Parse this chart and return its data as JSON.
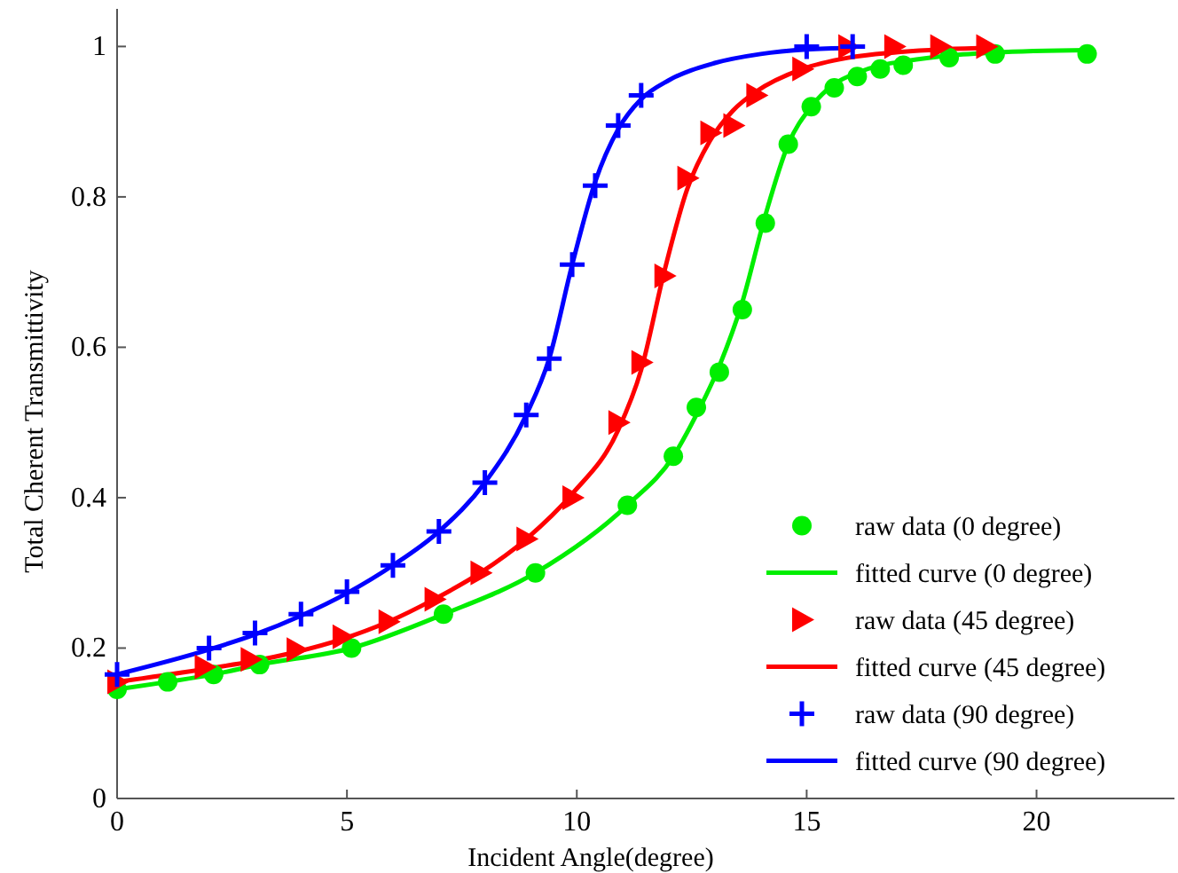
{
  "chart_data": {
    "type": "line",
    "xlabel": "Incident Angle(degree)",
    "ylabel": "Total Cherent Transmittivity",
    "xlim": [
      0,
      23
    ],
    "ylim": [
      0,
      1.05
    ],
    "xticks": [
      0,
      5,
      10,
      15,
      20
    ],
    "yticks": [
      0,
      0.2,
      0.4,
      0.6,
      0.8,
      1
    ],
    "grid": false,
    "legend": "bottom right",
    "series": [
      {
        "name": "raw data (0 degree)",
        "type": "scatter",
        "marker": "circle",
        "color": "#00ee00",
        "x": [
          0,
          1.1,
          2.1,
          3.1,
          5.1,
          7.1,
          9.1,
          11.1,
          12.1,
          12.6,
          13.1,
          13.6,
          14.1,
          14.6,
          15.1,
          15.6,
          16.1,
          16.6,
          17.1,
          18.1,
          19.1,
          21.1
        ],
        "values": [
          0.145,
          0.155,
          0.165,
          0.178,
          0.2,
          0.245,
          0.3,
          0.39,
          0.455,
          0.52,
          0.567,
          0.65,
          0.765,
          0.87,
          0.92,
          0.945,
          0.96,
          0.97,
          0.975,
          0.985,
          0.99,
          0.99
        ]
      },
      {
        "name": "fitted curve (0 degree)",
        "marker": "none",
        "color": "#00ee00",
        "x": [
          0,
          1.1,
          2.1,
          3.1,
          5.1,
          7.1,
          9.1,
          11.1,
          12.1,
          12.6,
          13.1,
          13.6,
          14.1,
          14.6,
          15.1,
          15.6,
          16.1,
          16.6,
          17.1,
          18.1,
          19.1,
          21.1
        ],
        "values": [
          0.145,
          0.155,
          0.165,
          0.178,
          0.2,
          0.245,
          0.3,
          0.39,
          0.455,
          0.51,
          0.575,
          0.66,
          0.775,
          0.87,
          0.92,
          0.95,
          0.965,
          0.975,
          0.98,
          0.988,
          0.992,
          0.995
        ]
      },
      {
        "name": "raw data (45 degree)",
        "type": "scatter",
        "marker": "triangle",
        "color": "#ff0000",
        "x": [
          0,
          1.9,
          2.9,
          3.9,
          4.9,
          5.9,
          6.9,
          7.9,
          8.9,
          9.9,
          10.9,
          11.4,
          11.9,
          12.4,
          12.9,
          13.4,
          13.9,
          14.9,
          15.9,
          16.9,
          17.9,
          18.9
        ],
        "values": [
          0.155,
          0.175,
          0.185,
          0.198,
          0.215,
          0.235,
          0.265,
          0.3,
          0.345,
          0.4,
          0.5,
          0.58,
          0.695,
          0.825,
          0.885,
          0.895,
          0.935,
          0.97,
          1.0,
          1.0,
          1.0,
          1.0
        ]
      },
      {
        "name": "fitted curve (45 degree)",
        "marker": "none",
        "color": "#ff0000",
        "x": [
          0,
          1.9,
          2.9,
          3.9,
          4.9,
          5.9,
          6.9,
          7.9,
          8.9,
          9.9,
          10.9,
          11.4,
          11.9,
          12.4,
          12.9,
          13.4,
          13.9,
          14.9,
          15.9,
          16.9,
          17.9,
          18.9
        ],
        "values": [
          0.155,
          0.172,
          0.182,
          0.195,
          0.212,
          0.235,
          0.265,
          0.3,
          0.345,
          0.405,
          0.49,
          0.57,
          0.7,
          0.81,
          0.875,
          0.915,
          0.94,
          0.97,
          0.985,
          0.992,
          0.996,
          0.998
        ]
      },
      {
        "name": "raw data (90 degree)",
        "type": "scatter",
        "marker": "cross",
        "color": "#0000ff",
        "x": [
          0,
          2,
          3,
          4,
          5,
          6,
          7,
          8,
          8.9,
          9.4,
          9.9,
          10.4,
          10.9,
          11.4,
          15,
          16
        ],
        "values": [
          0.165,
          0.2,
          0.22,
          0.245,
          0.275,
          0.31,
          0.355,
          0.42,
          0.51,
          0.585,
          0.71,
          0.815,
          0.895,
          0.935,
          1.0,
          1.0
        ]
      },
      {
        "name": "fitted curve (90 degree)",
        "marker": "none",
        "color": "#0000ff",
        "x": [
          0,
          2,
          3,
          4,
          5,
          6,
          7,
          8,
          8.9,
          9.4,
          9.9,
          10.4,
          10.9,
          11.4,
          12,
          13,
          14,
          15,
          16
        ],
        "values": [
          0.165,
          0.198,
          0.218,
          0.243,
          0.273,
          0.31,
          0.355,
          0.42,
          0.51,
          0.585,
          0.71,
          0.82,
          0.89,
          0.93,
          0.955,
          0.978,
          0.99,
          0.996,
          0.998
        ]
      }
    ]
  }
}
